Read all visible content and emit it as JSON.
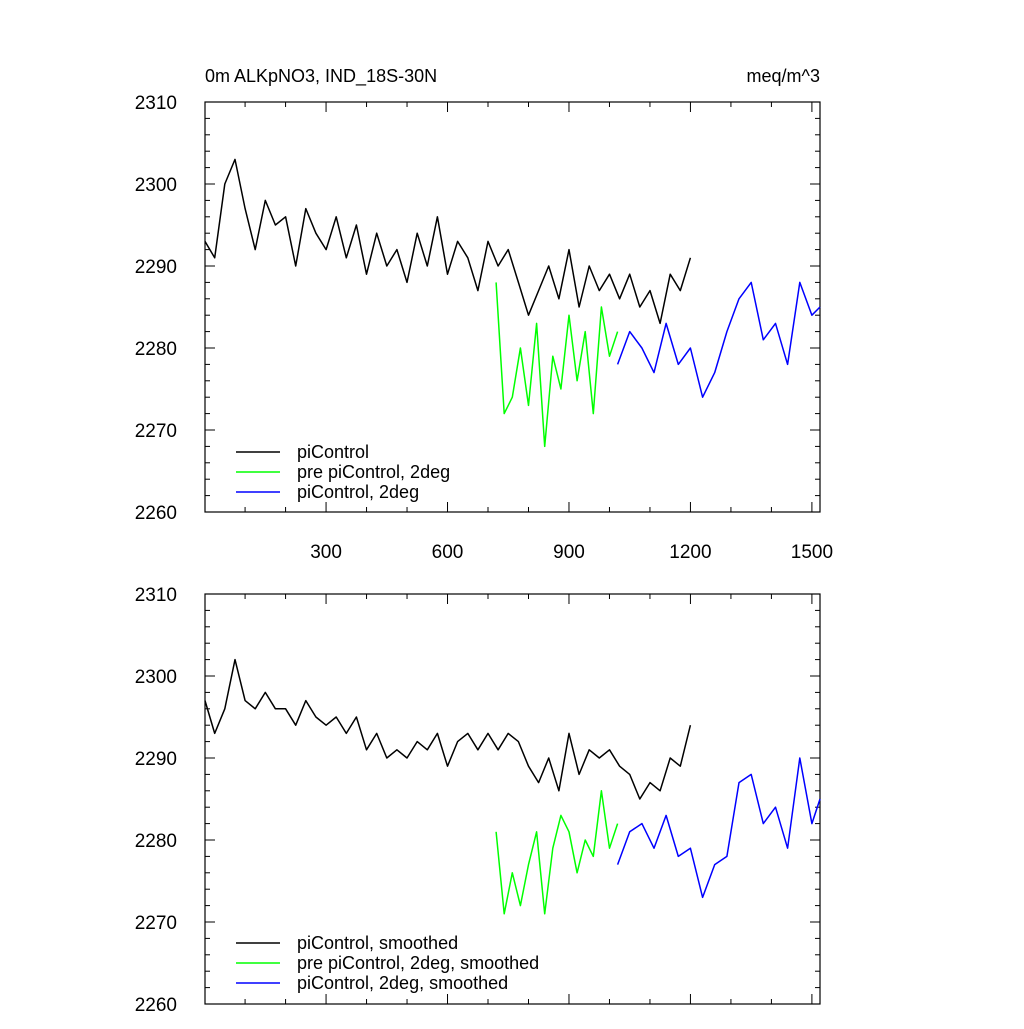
{
  "chart_data": [
    {
      "type": "line",
      "title": "0m ALKpNO3, IND_18S-30N",
      "units": "meq/m^3",
      "xlim": [
        1,
        1520
      ],
      "ylim": [
        2260,
        2310
      ],
      "xticks": [
        300,
        600,
        900,
        1200,
        1500
      ],
      "yticks": [
        2260,
        2270,
        2280,
        2290,
        2300,
        2310
      ],
      "series": [
        {
          "name": "piControl",
          "color": "#000000",
          "x": [
            1,
            25,
            50,
            75,
            100,
            125,
            150,
            175,
            200,
            225,
            250,
            275,
            300,
            325,
            350,
            375,
            400,
            425,
            450,
            475,
            500,
            525,
            550,
            575,
            600,
            625,
            650,
            675,
            700,
            725,
            750,
            775,
            800,
            825,
            850,
            875,
            900,
            925,
            950,
            975,
            1000,
            1025,
            1050,
            1075,
            1100,
            1125,
            1150,
            1175,
            1200
          ],
          "values": [
            2293,
            2291,
            2300,
            2303,
            2297,
            2292,
            2298,
            2295,
            2296,
            2290,
            2297,
            2294,
            2292,
            2296,
            2291,
            2295,
            2289,
            2294,
            2290,
            2292,
            2288,
            2294,
            2290,
            2296,
            2289,
            2293,
            2291,
            2287,
            2293,
            2290,
            2292,
            2288,
            2284,
            2287,
            2290,
            2286,
            2292,
            2285,
            2290,
            2287,
            2289,
            2286,
            2289,
            2285,
            2287,
            2283,
            2289,
            2287,
            2291
          ]
        },
        {
          "name": "pre piControl, 2deg",
          "color": "#00ff00",
          "x": [
            720,
            740,
            760,
            780,
            800,
            820,
            840,
            860,
            880,
            900,
            920,
            940,
            960,
            980,
            1000,
            1020
          ],
          "values": [
            2288,
            2272,
            2274,
            2280,
            2273,
            2283,
            2268,
            2279,
            2275,
            2284,
            2276,
            2282,
            2272,
            2285,
            2279,
            2282
          ]
        },
        {
          "name": "piControl, 2deg",
          "color": "#0000ff",
          "x": [
            1020,
            1050,
            1080,
            1110,
            1140,
            1170,
            1200,
            1230,
            1260,
            1290,
            1320,
            1350,
            1380,
            1410,
            1440,
            1470,
            1500,
            1520
          ],
          "values": [
            2278,
            2282,
            2280,
            2277,
            2283,
            2278,
            2280,
            2274,
            2277,
            2282,
            2286,
            2288,
            2281,
            2283,
            2278,
            2288,
            2284,
            2285
          ]
        }
      ]
    },
    {
      "type": "line",
      "xlim": [
        1,
        1520
      ],
      "ylim": [
        2260,
        2310
      ],
      "yticks": [
        2260,
        2270,
        2280,
        2290,
        2300,
        2310
      ],
      "series": [
        {
          "name": "piControl, smoothed",
          "color": "#000000",
          "x": [
            1,
            25,
            50,
            75,
            100,
            125,
            150,
            175,
            200,
            225,
            250,
            275,
            300,
            325,
            350,
            375,
            400,
            425,
            450,
            475,
            500,
            525,
            550,
            575,
            600,
            625,
            650,
            675,
            700,
            725,
            750,
            775,
            800,
            825,
            850,
            875,
            900,
            925,
            950,
            975,
            1000,
            1025,
            1050,
            1075,
            1100,
            1125,
            1150,
            1175,
            1200
          ],
          "values": [
            2297,
            2293,
            2296,
            2302,
            2297,
            2296,
            2298,
            2296,
            2296,
            2294,
            2297,
            2295,
            2294,
            2295,
            2293,
            2295,
            2291,
            2293,
            2290,
            2291,
            2290,
            2292,
            2291,
            2293,
            2289,
            2292,
            2293,
            2291,
            2293,
            2291,
            2293,
            2292,
            2289,
            2287,
            2290,
            2286,
            2293,
            2288,
            2291,
            2290,
            2291,
            2289,
            2288,
            2285,
            2287,
            2286,
            2290,
            2289,
            2294
          ]
        },
        {
          "name": "pre piControl, 2deg, smoothed",
          "color": "#00ff00",
          "x": [
            720,
            740,
            760,
            780,
            800,
            820,
            840,
            860,
            880,
            900,
            920,
            940,
            960,
            980,
            1000,
            1020
          ],
          "values": [
            2281,
            2271,
            2276,
            2272,
            2277,
            2281,
            2271,
            2279,
            2283,
            2281,
            2276,
            2280,
            2278,
            2286,
            2279,
            2282
          ]
        },
        {
          "name": "piControl, 2deg, smoothed",
          "color": "#0000ff",
          "x": [
            1020,
            1050,
            1080,
            1110,
            1140,
            1170,
            1200,
            1230,
            1260,
            1290,
            1320,
            1350,
            1380,
            1410,
            1440,
            1470,
            1500,
            1520
          ],
          "values": [
            2277,
            2281,
            2282,
            2279,
            2283,
            2278,
            2279,
            2273,
            2277,
            2278,
            2287,
            2288,
            2282,
            2284,
            2279,
            2290,
            2282,
            2285
          ]
        }
      ]
    }
  ]
}
